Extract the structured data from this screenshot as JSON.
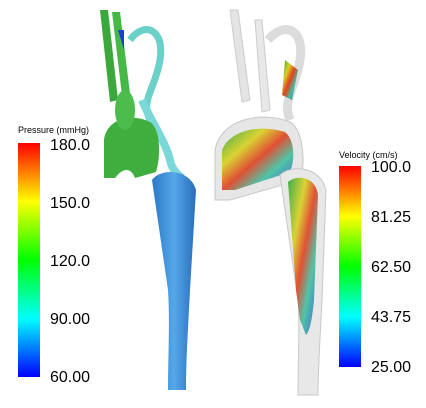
{
  "colorbars": [
    {
      "title": "Pressure (mmHg)",
      "labels": [
        "180.0",
        "150.0",
        "120.0",
        "90.00",
        "60.00"
      ]
    },
    {
      "title": "Velocity (cm/s)",
      "labels": [
        "100.0",
        "81.25",
        "62.50",
        "43.75",
        "25.00"
      ]
    }
  ]
}
